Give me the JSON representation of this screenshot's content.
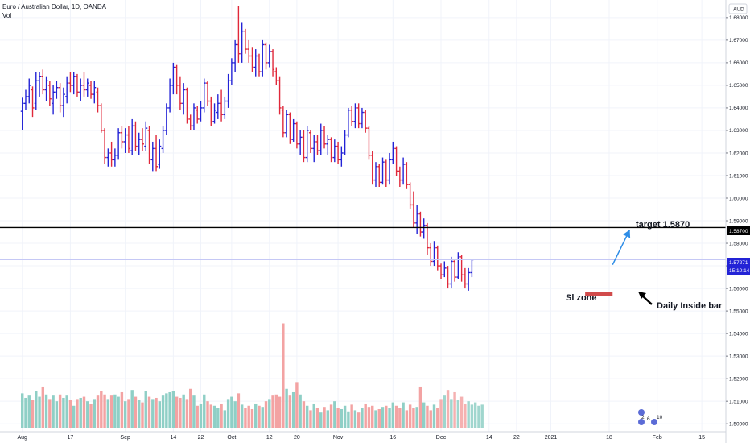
{
  "header": {
    "symbol_line": "Euro / Australian Dollar, 1D, OANDA",
    "volume_label": "Vol"
  },
  "currency_badge": "AUD",
  "price_tags": {
    "target": "1.58700",
    "current": "1.57271",
    "countdown": "15:10:14"
  },
  "annotations": {
    "target": "target 1.5870",
    "sl_zone": "Sl zone",
    "inside_bar": "Daily Inside bar"
  },
  "event_markers": {
    "m1": "2",
    "m2": "6",
    "m3": "10"
  },
  "colors": {
    "up_bar": "#2323d6",
    "down_bar": "#e0283a",
    "vol_up": "#8fcfc6",
    "vol_down": "#f3a3a3",
    "target_line": "#000000",
    "current_line": "#c5c8f5",
    "sl_zone": "#d14b4b",
    "projection_arrow": "#2d8ce6",
    "current_tag": "#2323d6"
  },
  "chart_data": {
    "type": "ohlc-bar",
    "interval": "1D",
    "y_ticks": [
      "1.68000",
      "1.67000",
      "1.66000",
      "1.65000",
      "1.64000",
      "1.63000",
      "1.62000",
      "1.61000",
      "1.60000",
      "1.59000",
      "1.58000",
      "1.57000",
      "1.56000",
      "1.55000",
      "1.54000",
      "1.53000",
      "1.52000",
      "1.51000",
      "1.50000"
    ],
    "x_ticks": [
      "Aug",
      "17",
      "Sep",
      "14",
      "22",
      "Oct",
      "12",
      "20",
      "Nov",
      "16",
      "Dec",
      "14",
      "22",
      "2021",
      "18",
      "Feb",
      "15"
    ],
    "x_tick_days": [
      0,
      14,
      30,
      44,
      52,
      61,
      72,
      80,
      92,
      108,
      122,
      136,
      144,
      154,
      171,
      185,
      198
    ],
    "ylim": [
      1.4965,
      1.6878
    ],
    "xlim": [
      -6.5,
      205
    ],
    "target_level": 1.587,
    "current_price": 1.57271,
    "sl_zone": [
      1.5565,
      1.5585
    ],
    "sl_zone_days": [
      164,
      172
    ],
    "projection": {
      "from": [
        172,
        1.5705
      ],
      "to": [
        177,
        1.586
      ]
    },
    "volume_tail_days": 13,
    "ohlc": [
      [
        1.6385,
        1.6445,
        1.63,
        1.642
      ],
      [
        1.642,
        1.648,
        1.639,
        1.645
      ],
      [
        1.645,
        1.653,
        1.642,
        1.65
      ],
      [
        1.648,
        1.6495,
        1.636,
        1.64
      ],
      [
        1.642,
        1.656,
        1.639,
        1.652
      ],
      [
        1.652,
        1.656,
        1.645,
        1.654
      ],
      [
        1.654,
        1.657,
        1.646,
        1.648
      ],
      [
        1.648,
        1.654,
        1.643,
        1.652
      ],
      [
        1.65,
        1.652,
        1.641,
        1.644
      ],
      [
        1.642,
        1.65,
        1.637,
        1.647
      ],
      [
        1.647,
        1.652,
        1.644,
        1.649
      ],
      [
        1.649,
        1.651,
        1.638,
        1.641
      ],
      [
        1.641,
        1.649,
        1.636,
        1.646
      ],
      [
        1.645,
        1.654,
        1.642,
        1.651
      ],
      [
        1.651,
        1.656,
        1.647,
        1.65
      ],
      [
        1.65,
        1.656,
        1.646,
        1.654
      ],
      [
        1.654,
        1.655,
        1.645,
        1.647
      ],
      [
        1.647,
        1.653,
        1.643,
        1.65
      ],
      [
        1.65,
        1.656,
        1.645,
        1.648
      ],
      [
        1.648,
        1.653,
        1.645,
        1.651
      ],
      [
        1.65,
        1.652,
        1.644,
        1.646
      ],
      [
        1.646,
        1.652,
        1.642,
        1.649
      ],
      [
        1.647,
        1.649,
        1.638,
        1.641
      ],
      [
        1.641,
        1.642,
        1.629,
        1.63
      ],
      [
        1.63,
        1.631,
        1.615,
        1.618
      ],
      [
        1.618,
        1.622,
        1.614,
        1.62
      ],
      [
        1.62,
        1.625,
        1.614,
        1.617
      ],
      [
        1.617,
        1.622,
        1.614,
        1.619
      ],
      [
        1.619,
        1.631,
        1.617,
        1.629
      ],
      [
        1.629,
        1.632,
        1.622,
        1.625
      ],
      [
        1.625,
        1.631,
        1.62,
        1.628
      ],
      [
        1.628,
        1.632,
        1.62,
        1.622
      ],
      [
        1.621,
        1.635,
        1.619,
        1.632
      ],
      [
        1.632,
        1.634,
        1.621,
        1.623
      ],
      [
        1.623,
        1.629,
        1.619,
        1.626
      ],
      [
        1.626,
        1.631,
        1.621,
        1.624
      ],
      [
        1.623,
        1.634,
        1.621,
        1.631
      ],
      [
        1.63,
        1.632,
        1.615,
        1.617
      ],
      [
        1.617,
        1.625,
        1.612,
        1.622
      ],
      [
        1.622,
        1.628,
        1.612,
        1.614
      ],
      [
        1.615,
        1.626,
        1.613,
        1.623
      ],
      [
        1.622,
        1.632,
        1.62,
        1.63
      ],
      [
        1.63,
        1.642,
        1.628,
        1.64
      ],
      [
        1.64,
        1.653,
        1.638,
        1.65
      ],
      [
        1.65,
        1.66,
        1.646,
        1.658
      ],
      [
        1.658,
        1.659,
        1.646,
        1.65
      ],
      [
        1.65,
        1.654,
        1.639,
        1.642
      ],
      [
        1.642,
        1.651,
        1.637,
        1.648
      ],
      [
        1.648,
        1.649,
        1.633,
        1.635
      ],
      [
        1.635,
        1.637,
        1.63,
        1.632
      ],
      [
        1.632,
        1.642,
        1.63,
        1.64
      ],
      [
        1.639,
        1.641,
        1.633,
        1.635
      ],
      [
        1.635,
        1.643,
        1.634,
        1.64
      ],
      [
        1.64,
        1.653,
        1.638,
        1.651
      ],
      [
        1.651,
        1.652,
        1.641,
        1.643
      ],
      [
        1.643,
        1.645,
        1.632,
        1.634
      ],
      [
        1.634,
        1.642,
        1.633,
        1.639
      ],
      [
        1.638,
        1.646,
        1.635,
        1.642
      ],
      [
        1.642,
        1.648,
        1.634,
        1.637
      ],
      [
        1.637,
        1.645,
        1.635,
        1.643
      ],
      [
        1.643,
        1.655,
        1.64,
        1.652
      ],
      [
        1.652,
        1.662,
        1.65,
        1.66
      ],
      [
        1.66,
        1.67,
        1.656,
        1.668
      ],
      [
        1.668,
        1.685,
        1.66,
        1.664
      ],
      [
        1.664,
        1.678,
        1.66,
        1.674
      ],
      [
        1.674,
        1.675,
        1.664,
        1.666
      ],
      [
        1.666,
        1.67,
        1.66,
        1.663
      ],
      [
        1.663,
        1.667,
        1.656,
        1.658
      ],
      [
        1.658,
        1.666,
        1.654,
        1.663
      ],
      [
        1.663,
        1.664,
        1.654,
        1.656
      ],
      [
        1.656,
        1.67,
        1.654,
        1.668
      ],
      [
        1.668,
        1.669,
        1.657,
        1.66
      ],
      [
        1.66,
        1.668,
        1.658,
        1.665
      ],
      [
        1.665,
        1.666,
        1.654,
        1.657
      ],
      [
        1.656,
        1.658,
        1.65,
        1.652
      ],
      [
        1.652,
        1.654,
        1.637,
        1.64
      ],
      [
        1.639,
        1.641,
        1.627,
        1.629
      ],
      [
        1.629,
        1.639,
        1.627,
        1.637
      ],
      [
        1.637,
        1.638,
        1.624,
        1.626
      ],
      [
        1.626,
        1.635,
        1.625,
        1.633
      ],
      [
        1.633,
        1.634,
        1.622,
        1.624
      ],
      [
        1.624,
        1.63,
        1.619,
        1.627
      ],
      [
        1.627,
        1.63,
        1.616,
        1.618
      ],
      [
        1.618,
        1.632,
        1.616,
        1.63
      ],
      [
        1.629,
        1.63,
        1.62,
        1.622
      ],
      [
        1.622,
        1.628,
        1.616,
        1.625
      ],
      [
        1.625,
        1.628,
        1.619,
        1.621
      ],
      [
        1.621,
        1.633,
        1.619,
        1.63
      ],
      [
        1.63,
        1.632,
        1.622,
        1.624
      ],
      [
        1.624,
        1.628,
        1.619,
        1.626
      ],
      [
        1.626,
        1.627,
        1.616,
        1.618
      ],
      [
        1.618,
        1.626,
        1.616,
        1.623
      ],
      [
        1.623,
        1.625,
        1.615,
        1.617
      ],
      [
        1.617,
        1.623,
        1.614,
        1.62
      ],
      [
        1.62,
        1.63,
        1.619,
        1.628
      ],
      [
        1.628,
        1.64,
        1.627,
        1.639
      ],
      [
        1.639,
        1.641,
        1.632,
        1.634
      ],
      [
        1.634,
        1.642,
        1.631,
        1.64
      ],
      [
        1.64,
        1.642,
        1.631,
        1.633
      ],
      [
        1.633,
        1.64,
        1.631,
        1.638
      ],
      [
        1.638,
        1.639,
        1.629,
        1.631
      ],
      [
        1.631,
        1.632,
        1.617,
        1.619
      ],
      [
        1.619,
        1.621,
        1.606,
        1.608
      ],
      [
        1.608,
        1.616,
        1.605,
        1.614
      ],
      [
        1.614,
        1.615,
        1.605,
        1.607
      ],
      [
        1.607,
        1.618,
        1.606,
        1.616
      ],
      [
        1.616,
        1.617,
        1.605,
        1.608
      ],
      [
        1.608,
        1.62,
        1.606,
        1.617
      ],
      [
        1.617,
        1.625,
        1.615,
        1.622
      ],
      [
        1.622,
        1.623,
        1.61,
        1.612
      ],
      [
        1.612,
        1.614,
        1.605,
        1.608
      ],
      [
        1.608,
        1.618,
        1.606,
        1.615
      ],
      [
        1.615,
        1.616,
        1.604,
        1.606
      ],
      [
        1.606,
        1.607,
        1.595,
        1.597
      ],
      [
        1.597,
        1.603,
        1.587,
        1.589
      ],
      [
        1.589,
        1.597,
        1.584,
        1.593
      ],
      [
        1.593,
        1.594,
        1.583,
        1.585
      ],
      [
        1.585,
        1.591,
        1.582,
        1.588
      ],
      [
        1.588,
        1.589,
        1.575,
        1.578
      ],
      [
        1.578,
        1.58,
        1.57,
        1.572
      ],
      [
        1.572,
        1.581,
        1.57,
        1.578
      ],
      [
        1.578,
        1.579,
        1.568,
        1.57
      ],
      [
        1.57,
        1.571,
        1.564,
        1.566
      ],
      [
        1.566,
        1.572,
        1.565,
        1.569
      ],
      [
        1.569,
        1.57,
        1.56,
        1.562
      ],
      [
        1.562,
        1.574,
        1.56,
        1.572
      ],
      [
        1.572,
        1.573,
        1.563,
        1.565
      ],
      [
        1.565,
        1.576,
        1.564,
        1.574
      ],
      [
        1.574,
        1.575,
        1.563,
        1.566
      ],
      [
        1.566,
        1.569,
        1.56,
        1.562
      ],
      [
        1.562,
        1.569,
        1.559,
        1.567
      ],
      [
        1.567,
        1.573,
        1.565,
        1.5727
      ]
    ],
    "volume": [
      1.5135,
      1.5115,
      1.5125,
      1.5105,
      1.5145,
      1.512,
      1.5165,
      1.513,
      1.511,
      1.5125,
      1.51,
      1.513,
      1.5115,
      1.5125,
      1.5105,
      1.508,
      1.511,
      1.5115,
      1.512,
      1.51,
      1.509,
      1.511,
      1.5125,
      1.5145,
      1.513,
      1.511,
      1.5125,
      1.513,
      1.512,
      1.514,
      1.51,
      1.511,
      1.515,
      1.512,
      1.5105,
      1.5095,
      1.5145,
      1.512,
      1.511,
      1.5115,
      1.51,
      1.5125,
      1.5135,
      1.514,
      1.5145,
      1.512,
      1.5115,
      1.513,
      1.511,
      1.5155,
      1.5125,
      1.508,
      1.509,
      1.513,
      1.51,
      1.5085,
      1.508,
      1.507,
      1.509,
      1.506,
      1.511,
      1.512,
      1.51,
      1.5135,
      1.5085,
      1.507,
      1.508,
      1.5065,
      1.509,
      1.508,
      1.5075,
      1.51,
      1.511,
      1.5125,
      1.513,
      1.512,
      1.5445,
      1.5155,
      1.5125,
      1.514,
      1.5185,
      1.513,
      1.51,
      1.508,
      1.506,
      1.509,
      1.507,
      1.505,
      1.5075,
      1.506,
      1.5085,
      1.51,
      1.507,
      1.5065,
      1.508,
      1.5055,
      1.5085,
      1.506,
      1.505,
      1.507,
      1.509,
      1.5075,
      1.508,
      1.506,
      1.5065,
      1.5075,
      1.508,
      1.507,
      1.5095,
      1.508,
      1.507,
      1.5095,
      1.506,
      1.5085,
      1.507,
      1.5075,
      1.5165,
      1.5095,
      1.508,
      1.506,
      1.5085,
      1.507,
      1.511,
      1.5125,
      1.515,
      1.511,
      1.514,
      1.5105,
      1.512,
      1.509,
      1.51,
      1.5085,
      1.5095,
      1.508,
      1.5085
    ]
  }
}
